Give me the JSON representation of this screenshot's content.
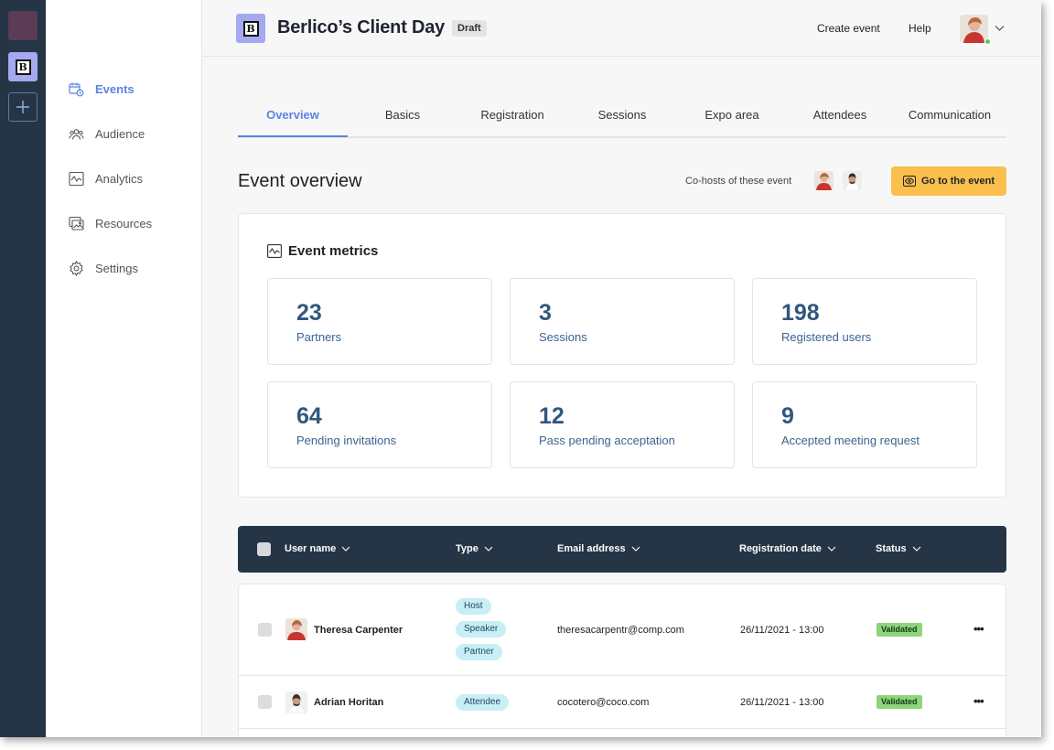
{
  "rail": {
    "logo_letter": "B"
  },
  "sidebar": {
    "items": [
      {
        "label": "Events",
        "icon": "calendar-clock-icon",
        "active": true
      },
      {
        "label": "Audience",
        "icon": "people-icon",
        "active": false
      },
      {
        "label": "Analytics",
        "icon": "analytics-chart-icon",
        "active": false
      },
      {
        "label": "Resources",
        "icon": "gallery-icon",
        "active": false
      },
      {
        "label": "Settings",
        "icon": "gear-icon",
        "active": false
      }
    ]
  },
  "header": {
    "logo_letter": "B",
    "title": "Berlico’s Client Day",
    "badge": "Draft",
    "create_event": "Create event",
    "help": "Help"
  },
  "tabs": [
    {
      "label": "Overview",
      "active": true
    },
    {
      "label": "Basics",
      "active": false
    },
    {
      "label": "Registration",
      "active": false
    },
    {
      "label": "Sessions",
      "active": false
    },
    {
      "label": "Expo area",
      "active": false
    },
    {
      "label": "Attendees",
      "active": false
    },
    {
      "label": "Communication",
      "active": false
    }
  ],
  "overview": {
    "title": "Event overview",
    "cohosts_label": "Co-hosts of these event",
    "go_button": "Go to the event"
  },
  "metrics": {
    "title": "Event metrics",
    "items": [
      {
        "value": "23",
        "label": "Partners"
      },
      {
        "value": "3",
        "label": "Sessions"
      },
      {
        "value": "198",
        "label": "Registered users"
      },
      {
        "value": "64",
        "label": "Pending invitations"
      },
      {
        "value": "12",
        "label": "Pass pending acceptation"
      },
      {
        "value": "9",
        "label": "Accepted meeting request"
      }
    ]
  },
  "table": {
    "columns": [
      "User name",
      "Type",
      "Email address",
      "Registration date",
      "Status"
    ],
    "rows": [
      {
        "name": "Theresa Carpenter",
        "types": [
          "Host",
          "Speaker",
          "Partner"
        ],
        "email": "theresacarpentr@comp.com",
        "date": "26/11/2021 - 13:00",
        "status": "Validated"
      },
      {
        "name": "Adrian Horitan",
        "types": [
          "Attendee"
        ],
        "email": "cocotero@coco.com",
        "date": "26/11/2021 - 13:00",
        "status": "Validated"
      }
    ],
    "more_symbol": "•••"
  },
  "colors": {
    "accent": "#5b84e0",
    "dark_navy": "#253546",
    "cta_yellow": "#fbbf4b",
    "status_green": "#8fd47b",
    "pill_cyan": "#c8eef6",
    "metric_text": "#31577e"
  }
}
